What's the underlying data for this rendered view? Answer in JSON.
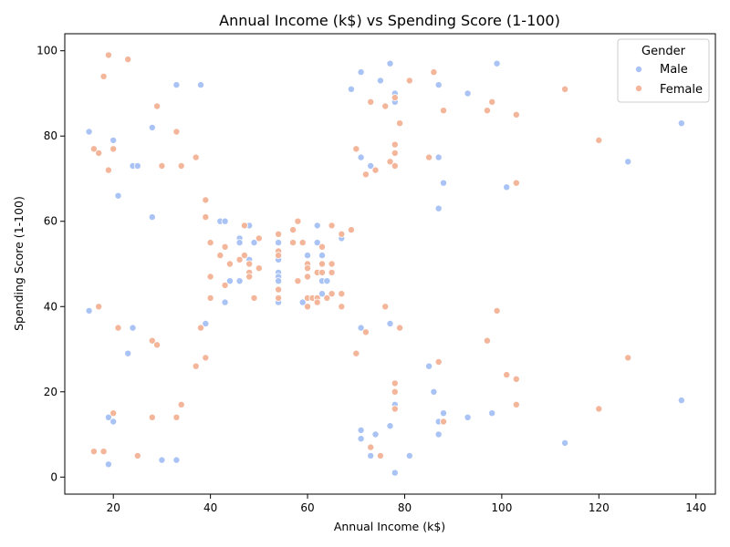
{
  "chart_data": {
    "type": "scatter",
    "title": "Annual Income (k$) vs Spending Score (1-100)",
    "xlabel": "Annual Income (k$)",
    "ylabel": "Spending Score (1-100)",
    "xlim": [
      10,
      144
    ],
    "ylim": [
      -4,
      104
    ],
    "xticks": [
      20,
      40,
      60,
      80,
      100,
      120,
      140
    ],
    "yticks": [
      0,
      20,
      40,
      60,
      80,
      100
    ],
    "grid": false,
    "legend": {
      "title": "Gender",
      "placement": "top-right"
    },
    "series": [
      {
        "name": "Male",
        "color": "#aac3f5",
        "points": [
          [
            15,
            81
          ],
          [
            15,
            39
          ],
          [
            19,
            14
          ],
          [
            19,
            3
          ],
          [
            20,
            79
          ],
          [
            20,
            13
          ],
          [
            21,
            66
          ],
          [
            23,
            29
          ],
          [
            24,
            73
          ],
          [
            24,
            35
          ],
          [
            25,
            73
          ],
          [
            28,
            82
          ],
          [
            28,
            61
          ],
          [
            30,
            4
          ],
          [
            33,
            92
          ],
          [
            33,
            4
          ],
          [
            38,
            92
          ],
          [
            39,
            36
          ],
          [
            42,
            60
          ],
          [
            43,
            60
          ],
          [
            43,
            41
          ],
          [
            44,
            46
          ],
          [
            46,
            56
          ],
          [
            46,
            55
          ],
          [
            46,
            46
          ],
          [
            48,
            59
          ],
          [
            48,
            51
          ],
          [
            49,
            55
          ],
          [
            54,
            55
          ],
          [
            54,
            51
          ],
          [
            54,
            48
          ],
          [
            54,
            47
          ],
          [
            54,
            46
          ],
          [
            54,
            41
          ],
          [
            59,
            41
          ],
          [
            60,
            52
          ],
          [
            60,
            49
          ],
          [
            61,
            42
          ],
          [
            62,
            59
          ],
          [
            62,
            55
          ],
          [
            63,
            52
          ],
          [
            63,
            48
          ],
          [
            63,
            46
          ],
          [
            63,
            43
          ],
          [
            64,
            46
          ],
          [
            67,
            56
          ],
          [
            69,
            91
          ],
          [
            71,
            95
          ],
          [
            71,
            75
          ],
          [
            71,
            35
          ],
          [
            71,
            11
          ],
          [
            71,
            9
          ],
          [
            73,
            73
          ],
          [
            73,
            5
          ],
          [
            74,
            10
          ],
          [
            75,
            93
          ],
          [
            77,
            97
          ],
          [
            77,
            36
          ],
          [
            77,
            12
          ],
          [
            78,
            90
          ],
          [
            78,
            88
          ],
          [
            78,
            17
          ],
          [
            78,
            1
          ],
          [
            81,
            5
          ],
          [
            85,
            26
          ],
          [
            86,
            20
          ],
          [
            87,
            92
          ],
          [
            87,
            75
          ],
          [
            87,
            63
          ],
          [
            87,
            13
          ],
          [
            87,
            10
          ],
          [
            88,
            69
          ],
          [
            88,
            15
          ],
          [
            93,
            90
          ],
          [
            93,
            14
          ],
          [
            98,
            15
          ],
          [
            99,
            97
          ],
          [
            101,
            68
          ],
          [
            113,
            8
          ],
          [
            126,
            74
          ],
          [
            137,
            83
          ],
          [
            137,
            18
          ]
        ]
      },
      {
        "name": "Female",
        "color": "#f4b69b",
        "points": [
          [
            16,
            77
          ],
          [
            16,
            6
          ],
          [
            17,
            76
          ],
          [
            17,
            40
          ],
          [
            18,
            94
          ],
          [
            18,
            6
          ],
          [
            19,
            99
          ],
          [
            19,
            72
          ],
          [
            20,
            77
          ],
          [
            20,
            15
          ],
          [
            21,
            35
          ],
          [
            23,
            98
          ],
          [
            25,
            5
          ],
          [
            28,
            32
          ],
          [
            28,
            14
          ],
          [
            29,
            87
          ],
          [
            29,
            31
          ],
          [
            30,
            73
          ],
          [
            33,
            81
          ],
          [
            33,
            14
          ],
          [
            34,
            73
          ],
          [
            34,
            17
          ],
          [
            37,
            75
          ],
          [
            37,
            26
          ],
          [
            38,
            35
          ],
          [
            39,
            65
          ],
          [
            39,
            61
          ],
          [
            39,
            28
          ],
          [
            40,
            55
          ],
          [
            40,
            47
          ],
          [
            40,
            42
          ],
          [
            42,
            52
          ],
          [
            43,
            54
          ],
          [
            43,
            45
          ],
          [
            44,
            50
          ],
          [
            46,
            51
          ],
          [
            47,
            59
          ],
          [
            47,
            52
          ],
          [
            48,
            50
          ],
          [
            48,
            48
          ],
          [
            48,
            47
          ],
          [
            49,
            42
          ],
          [
            50,
            56
          ],
          [
            50,
            49
          ],
          [
            54,
            57
          ],
          [
            54,
            53
          ],
          [
            54,
            52
          ],
          [
            54,
            44
          ],
          [
            54,
            42
          ],
          [
            57,
            58
          ],
          [
            57,
            55
          ],
          [
            58,
            60
          ],
          [
            58,
            46
          ],
          [
            59,
            55
          ],
          [
            60,
            50
          ],
          [
            60,
            49
          ],
          [
            60,
            47
          ],
          [
            60,
            42
          ],
          [
            60,
            40
          ],
          [
            61,
            42
          ],
          [
            62,
            48
          ],
          [
            62,
            42
          ],
          [
            62,
            41
          ],
          [
            63,
            54
          ],
          [
            63,
            50
          ],
          [
            63,
            48
          ],
          [
            64,
            42
          ],
          [
            65,
            59
          ],
          [
            65,
            50
          ],
          [
            65,
            48
          ],
          [
            65,
            43
          ],
          [
            67,
            57
          ],
          [
            67,
            43
          ],
          [
            67,
            40
          ],
          [
            69,
            58
          ],
          [
            70,
            77
          ],
          [
            70,
            29
          ],
          [
            72,
            71
          ],
          [
            72,
            34
          ],
          [
            73,
            88
          ],
          [
            73,
            7
          ],
          [
            74,
            72
          ],
          [
            75,
            5
          ],
          [
            76,
            87
          ],
          [
            76,
            40
          ],
          [
            77,
            74
          ],
          [
            78,
            78
          ],
          [
            78,
            76
          ],
          [
            78,
            73
          ],
          [
            78,
            22
          ],
          [
            78,
            20
          ],
          [
            78,
            16
          ],
          [
            78,
            89
          ],
          [
            79,
            83
          ],
          [
            79,
            35
          ],
          [
            81,
            93
          ],
          [
            85,
            75
          ],
          [
            86,
            95
          ],
          [
            87,
            27
          ],
          [
            88,
            86
          ],
          [
            88,
            13
          ],
          [
            97,
            86
          ],
          [
            97,
            32
          ],
          [
            98,
            88
          ],
          [
            99,
            39
          ],
          [
            101,
            24
          ],
          [
            103,
            85
          ],
          [
            103,
            69
          ],
          [
            103,
            23
          ],
          [
            103,
            17
          ],
          [
            113,
            91
          ],
          [
            120,
            79
          ],
          [
            120,
            16
          ],
          [
            126,
            28
          ]
        ]
      }
    ]
  }
}
